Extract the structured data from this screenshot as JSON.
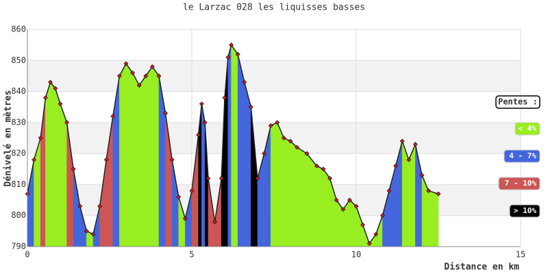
{
  "chart_data": {
    "type": "elevation-profile",
    "title": "le Larzac 028 les liquisses basses",
    "x_label": "Distance en km",
    "y_label": "Dénivelé en mètres",
    "xlim": [
      0,
      15
    ],
    "xticks": [
      0,
      5,
      10,
      15
    ],
    "ylim": [
      790,
      860
    ],
    "yticks": [
      790,
      800,
      810,
      820,
      830,
      840,
      850,
      860
    ],
    "grid": true,
    "line_color": "#222222",
    "marker_color": "#cc2222",
    "x": [
      0,
      0.2,
      0.4,
      0.55,
      0.7,
      0.85,
      1.0,
      1.2,
      1.4,
      1.6,
      1.8,
      2.0,
      2.2,
      2.4,
      2.6,
      2.8,
      3.0,
      3.2,
      3.4,
      3.6,
      3.8,
      4.0,
      4.2,
      4.4,
      4.6,
      4.8,
      5.0,
      5.2,
      5.3,
      5.4,
      5.5,
      5.7,
      5.9,
      6.0,
      6.1,
      6.2,
      6.4,
      6.6,
      6.8,
      7.0,
      7.2,
      7.4,
      7.6,
      7.8,
      8.0,
      8.2,
      8.5,
      8.8,
      9.0,
      9.2,
      9.4,
      9.6,
      9.8,
      10.0,
      10.2,
      10.4,
      10.6,
      10.8,
      11.0,
      11.2,
      11.4,
      11.6,
      11.8,
      12.0,
      12.2,
      12.5
    ],
    "values": [
      807,
      818,
      825,
      838,
      843,
      841,
      836,
      830,
      815,
      803,
      795,
      794,
      803,
      818,
      832,
      845,
      849,
      846,
      842,
      845,
      848,
      845,
      833,
      818,
      806,
      799,
      808,
      826,
      836,
      830,
      812,
      798,
      812,
      838,
      851,
      855,
      852,
      843,
      835,
      812,
      820,
      829,
      830,
      825,
      824,
      822,
      820,
      816,
      815,
      812,
      805,
      802,
      805,
      803,
      797,
      791,
      794,
      800,
      808,
      816,
      824,
      818,
      823,
      813,
      808,
      807
    ],
    "colors": [
      "#4466dd",
      "#99ee22",
      "#cc5555",
      "#99ee22",
      "#99ee22",
      "#99ee22",
      "#99ee22",
      "#cc5555",
      "#4466dd",
      "#4466dd",
      "#99ee22",
      "#4466dd",
      "#cc5555",
      "#cc5555",
      "#4466dd",
      "#99ee22",
      "#99ee22",
      "#99ee22",
      "#99ee22",
      "#99ee22",
      "#99ee22",
      "#4466dd",
      "#cc5555",
      "#4466dd",
      "#99ee22",
      "#4466dd",
      "#cc5555",
      "#000000",
      "#4466dd",
      "#000000",
      "#cc5555",
      "#cc5555",
      "#000000",
      "#000000",
      "#4466dd",
      "#99ee22",
      "#4466dd",
      "#4466dd",
      "#000000",
      "#4466dd",
      "#4466dd",
      "#99ee22",
      "#99ee22",
      "#99ee22",
      "#99ee22",
      "#99ee22",
      "#99ee22",
      "#99ee22",
      "#99ee22",
      "#99ee22",
      "#99ee22",
      "#99ee22",
      "#99ee22",
      "#99ee22",
      "#99ee22",
      "#99ee22",
      "#99ee22",
      "#4466dd",
      "#4466dd",
      "#4466dd",
      "#99ee22",
      "#99ee22",
      "#4466dd",
      "#99ee22",
      "#99ee22",
      "#99ee22"
    ],
    "legend_title": "Pentes :",
    "legend": [
      {
        "label": "< 4%",
        "color": "#99ee22"
      },
      {
        "label": "4 - 7%",
        "color": "#4466dd"
      },
      {
        "label": "7 - 10%",
        "color": "#cc5555"
      },
      {
        "label": "> 10%",
        "color": "#000000"
      }
    ]
  }
}
